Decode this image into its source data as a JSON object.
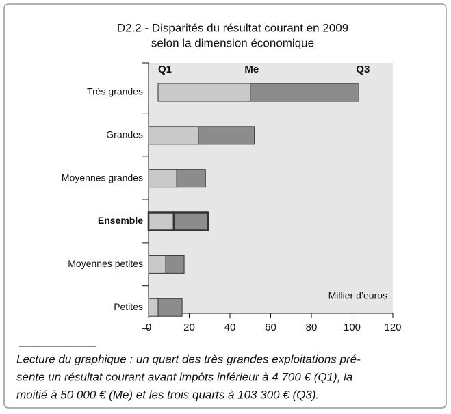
{
  "chart_data": {
    "type": "range_bar",
    "title": [
      "D2.2 - Disparités du résultat courant en 2009",
      "selon la dimension économique"
    ],
    "categories": [
      "Très grandes",
      "Grandes",
      "Moyennes grandes",
      "Ensemble",
      "Moyennes petites",
      "Petites"
    ],
    "series": [
      {
        "name": "Q1",
        "color": "#c9c9c9",
        "values": [
          4.7,
          0,
          0,
          0,
          0,
          0
        ]
      },
      {
        "name": "Me",
        "color": "#8c8c8c",
        "values": [
          50,
          24.5,
          13.8,
          12.4,
          8.4,
          4.7
        ]
      },
      {
        "name": "Q3",
        "color": "#8c8c8c",
        "values": [
          103.3,
          52,
          28,
          29.2,
          17.5,
          16.5
        ]
      }
    ],
    "highlight": "Ensemble",
    "unit_label": "Millier d’euros",
    "xlim": [
      0,
      120
    ],
    "xticks": [
      0,
      20,
      40,
      60,
      80,
      100,
      120
    ],
    "footnote": [
      "Lecture du graphique : un quart des très grandes exploitations pré-",
      "sente un résultat courant avant impôts inférieur à 4 700 € (Q1), la",
      "moitié à 50 000 € (Me) et les trois quarts à 103 300 € (Q3)."
    ]
  }
}
